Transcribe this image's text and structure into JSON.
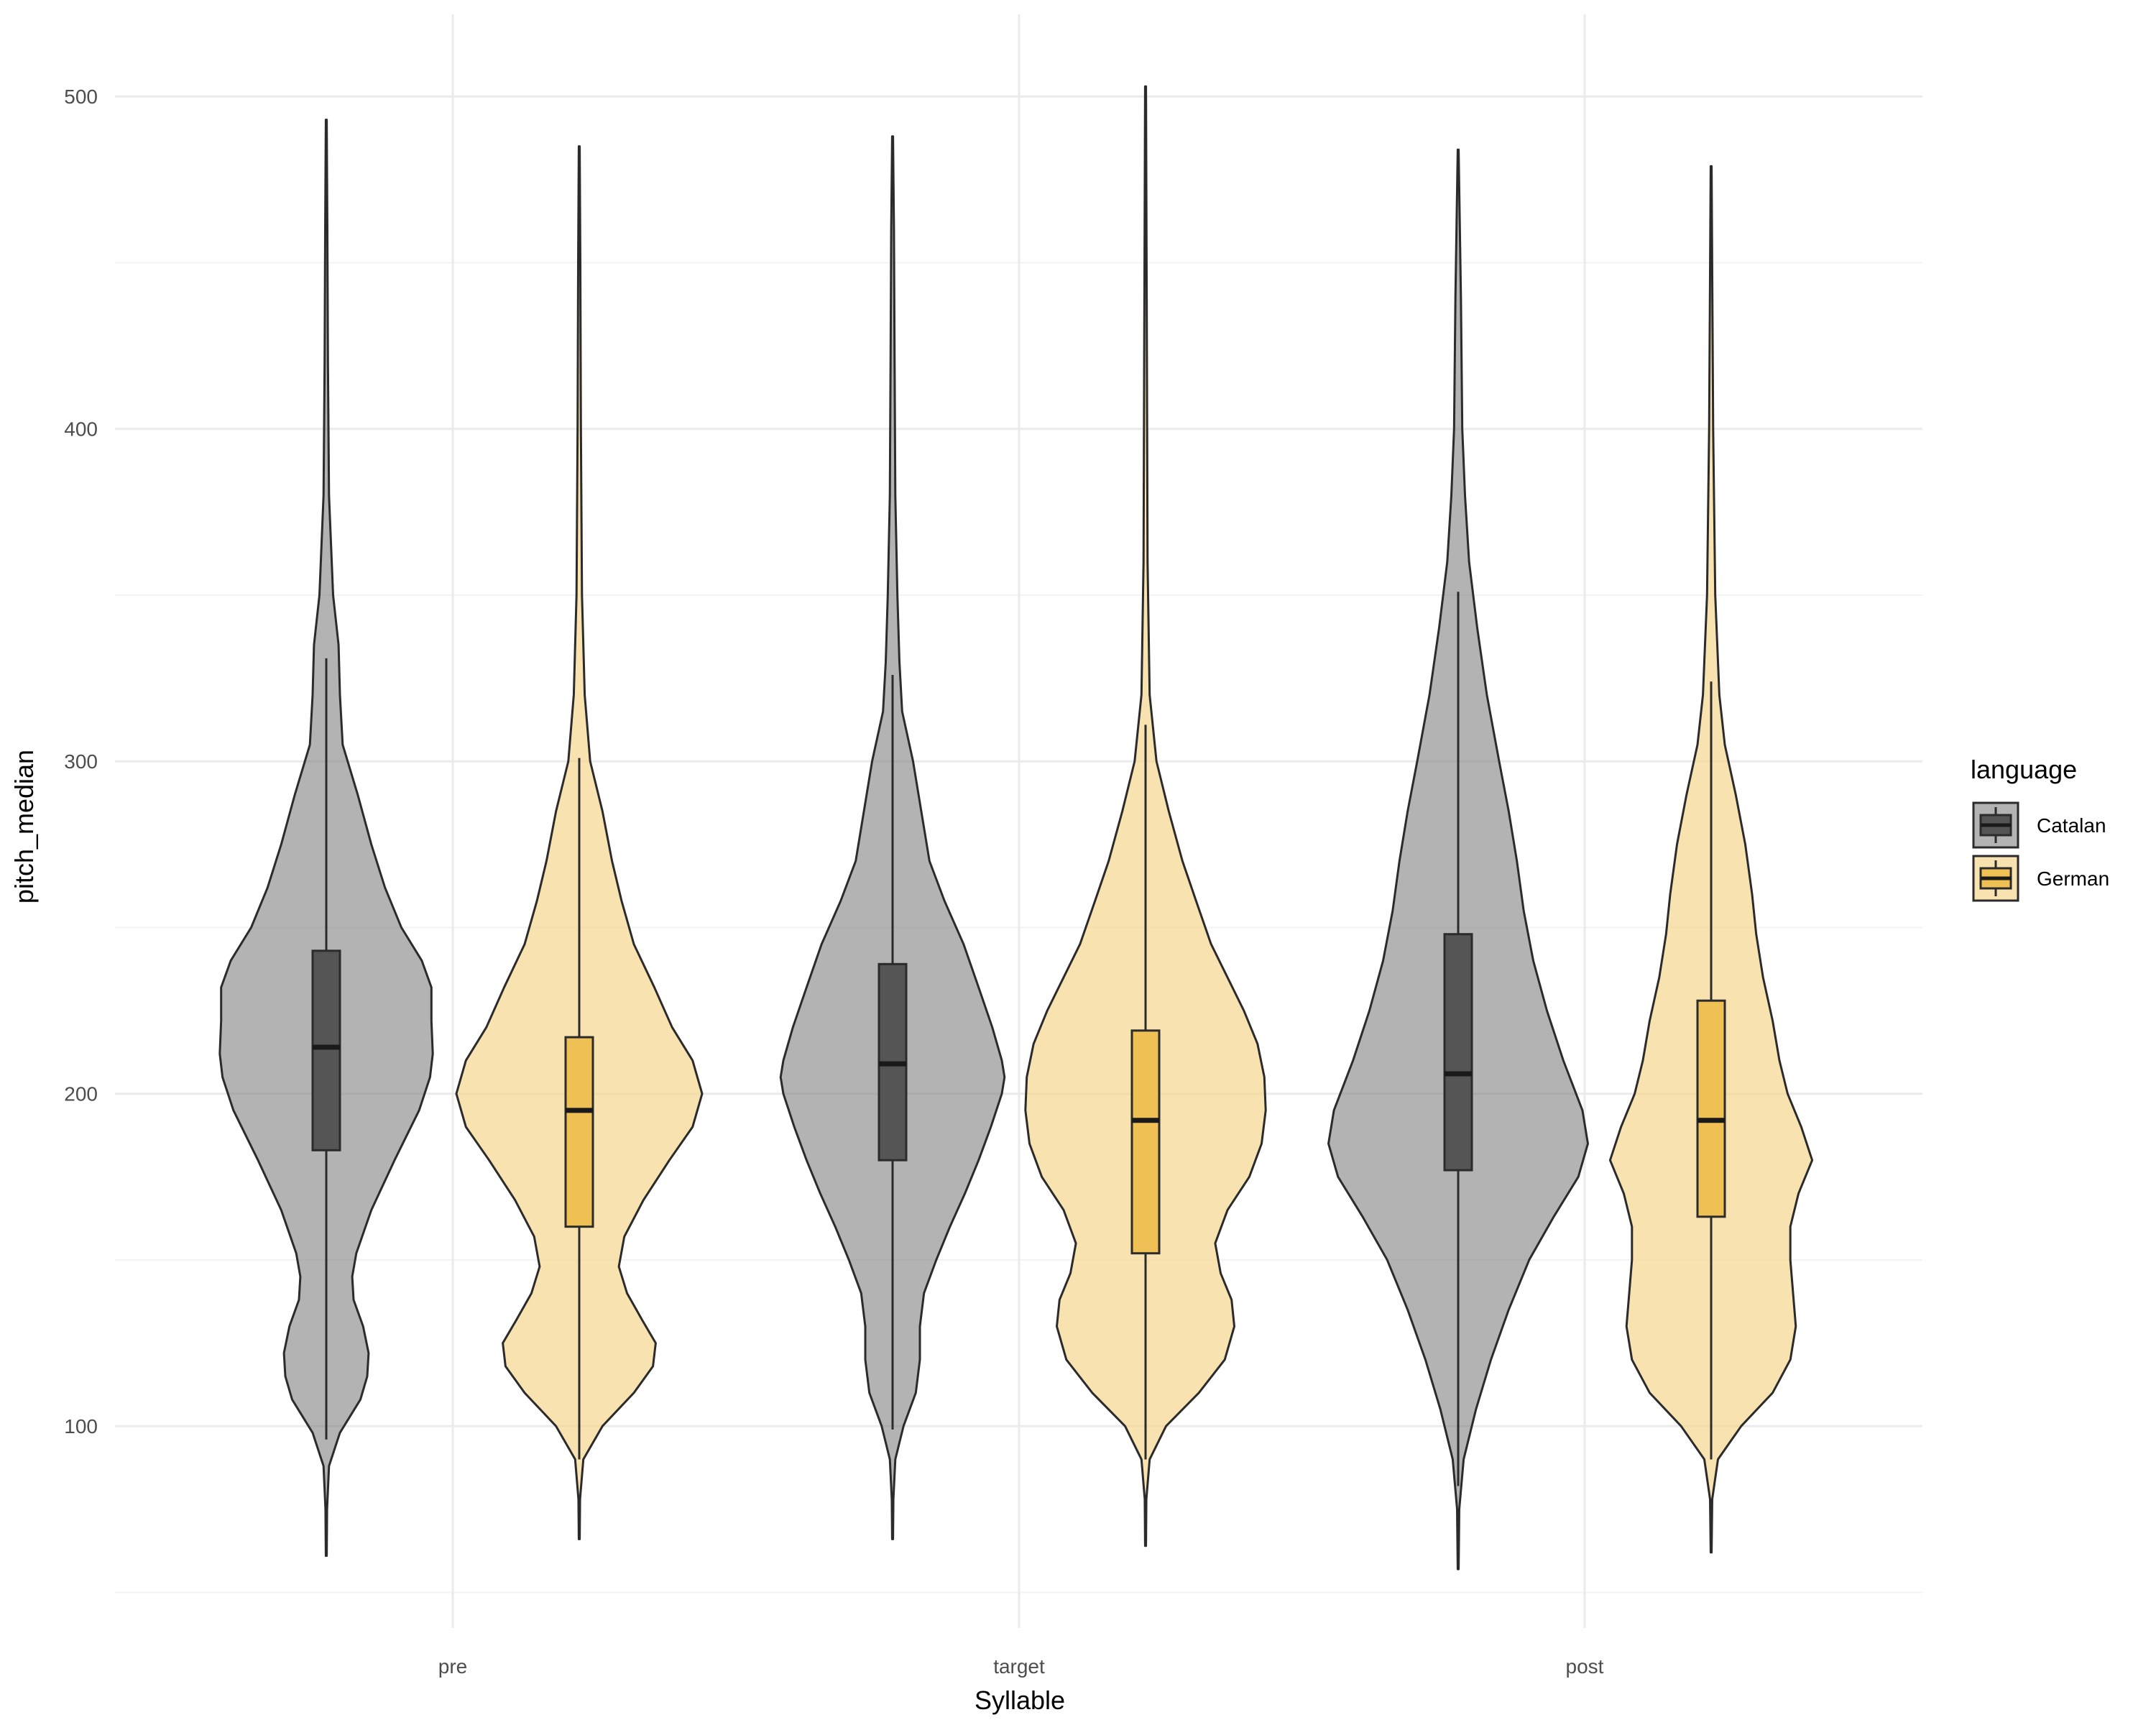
{
  "chart_data": {
    "type": "violin",
    "title": "",
    "xlabel": "Syllable",
    "ylabel": "pitch_median",
    "categories": [
      "pre",
      "target",
      "post"
    ],
    "ylim": [
      48,
      524
    ],
    "yticks": [
      100,
      200,
      300,
      400,
      500
    ],
    "grid": true,
    "legend": {
      "title": "language",
      "position": "right",
      "entries": [
        "Catalan",
        "German"
      ]
    },
    "colors": {
      "Catalan_fill": "#808080",
      "Catalan_box": "#555555",
      "German_fill": "#F5D58E",
      "German_box": "#EFC154",
      "outline": "#2b2b2b",
      "grid_major": "#ebebeb",
      "grid_minor": "#f3f3f3"
    },
    "series": [
      {
        "name": "Catalan",
        "groups": [
          {
            "category": "pre",
            "range": [
              61,
              493
            ],
            "box": {
              "whisker_low": 96,
              "q1": 183,
              "median": 214,
              "q3": 243,
              "whisker_high": 331
            },
            "density": [
              [
                61,
                0.003
              ],
              [
                75,
                0.006
              ],
              [
                88,
                0.02
              ],
              [
                98,
                0.1
              ],
              [
                108,
                0.25
              ],
              [
                115,
                0.3
              ],
              [
                122,
                0.31
              ],
              [
                130,
                0.27
              ],
              [
                138,
                0.2
              ],
              [
                145,
                0.19
              ],
              [
                152,
                0.22
              ],
              [
                165,
                0.33
              ],
              [
                180,
                0.5
              ],
              [
                195,
                0.68
              ],
              [
                205,
                0.76
              ],
              [
                212,
                0.78
              ],
              [
                222,
                0.77
              ],
              [
                232,
                0.77
              ],
              [
                240,
                0.7
              ],
              [
                250,
                0.55
              ],
              [
                262,
                0.43
              ],
              [
                275,
                0.33
              ],
              [
                290,
                0.23
              ],
              [
                305,
                0.12
              ],
              [
                320,
                0.1
              ],
              [
                335,
                0.09
              ],
              [
                350,
                0.05
              ],
              [
                380,
                0.02
              ],
              [
                420,
                0.012
              ],
              [
                460,
                0.008
              ],
              [
                493,
                0.003
              ]
            ]
          },
          {
            "category": "target",
            "range": [
              66,
              488
            ],
            "box": {
              "whisker_low": 99,
              "q1": 180,
              "median": 209,
              "q3": 239,
              "whisker_high": 326
            },
            "density": [
              [
                66,
                0.003
              ],
              [
                78,
                0.006
              ],
              [
                90,
                0.02
              ],
              [
                100,
                0.08
              ],
              [
                110,
                0.17
              ],
              [
                120,
                0.2
              ],
              [
                130,
                0.2
              ],
              [
                140,
                0.23
              ],
              [
                150,
                0.32
              ],
              [
                160,
                0.42
              ],
              [
                170,
                0.53
              ],
              [
                180,
                0.63
              ],
              [
                190,
                0.72
              ],
              [
                200,
                0.8
              ],
              [
                205,
                0.82
              ],
              [
                210,
                0.8
              ],
              [
                220,
                0.73
              ],
              [
                232,
                0.63
              ],
              [
                245,
                0.52
              ],
              [
                258,
                0.38
              ],
              [
                270,
                0.27
              ],
              [
                285,
                0.21
              ],
              [
                300,
                0.15
              ],
              [
                315,
                0.07
              ],
              [
                330,
                0.05
              ],
              [
                350,
                0.035
              ],
              [
                380,
                0.02
              ],
              [
                420,
                0.015
              ],
              [
                460,
                0.01
              ],
              [
                488,
                0.003
              ]
            ]
          },
          {
            "category": "post",
            "range": [
              57,
              484
            ],
            "box": {
              "whisker_low": 82,
              "q1": 177,
              "median": 206,
              "q3": 248,
              "whisker_high": 351
            },
            "density": [
              [
                57,
                0.003
              ],
              [
                75,
                0.008
              ],
              [
                90,
                0.04
              ],
              [
                105,
                0.13
              ],
              [
                120,
                0.24
              ],
              [
                135,
                0.37
              ],
              [
                150,
                0.52
              ],
              [
                163,
                0.7
              ],
              [
                175,
                0.88
              ],
              [
                185,
                0.95
              ],
              [
                195,
                0.91
              ],
              [
                210,
                0.77
              ],
              [
                225,
                0.65
              ],
              [
                240,
                0.55
              ],
              [
                255,
                0.48
              ],
              [
                270,
                0.43
              ],
              [
                285,
                0.37
              ],
              [
                300,
                0.3
              ],
              [
                320,
                0.21
              ],
              [
                340,
                0.14
              ],
              [
                360,
                0.08
              ],
              [
                380,
                0.05
              ],
              [
                400,
                0.03
              ],
              [
                440,
                0.02
              ],
              [
                484,
                0.003
              ]
            ]
          }
        ]
      },
      {
        "name": "German",
        "groups": [
          {
            "category": "pre",
            "range": [
              66,
              485
            ],
            "box": {
              "whisker_low": 90,
              "q1": 160,
              "median": 195,
              "q3": 217,
              "whisker_high": 301
            },
            "density": [
              [
                66,
                0.003
              ],
              [
                78,
                0.006
              ],
              [
                90,
                0.03
              ],
              [
                100,
                0.17
              ],
              [
                110,
                0.4
              ],
              [
                118,
                0.54
              ],
              [
                125,
                0.56
              ],
              [
                132,
                0.46
              ],
              [
                140,
                0.35
              ],
              [
                148,
                0.29
              ],
              [
                157,
                0.33
              ],
              [
                168,
                0.47
              ],
              [
                180,
                0.66
              ],
              [
                190,
                0.83
              ],
              [
                200,
                0.9
              ],
              [
                210,
                0.83
              ],
              [
                220,
                0.68
              ],
              [
                232,
                0.55
              ],
              [
                245,
                0.4
              ],
              [
                258,
                0.31
              ],
              [
                270,
                0.24
              ],
              [
                285,
                0.17
              ],
              [
                300,
                0.08
              ],
              [
                320,
                0.04
              ],
              [
                350,
                0.02
              ],
              [
                400,
                0.012
              ],
              [
                450,
                0.008
              ],
              [
                485,
                0.003
              ]
            ]
          },
          {
            "category": "target",
            "range": [
              64,
              503
            ],
            "box": {
              "whisker_low": 90,
              "q1": 152,
              "median": 192,
              "q3": 219,
              "whisker_high": 311
            },
            "density": [
              [
                64,
                0.003
              ],
              [
                78,
                0.006
              ],
              [
                90,
                0.03
              ],
              [
                100,
                0.15
              ],
              [
                110,
                0.39
              ],
              [
                120,
                0.58
              ],
              [
                130,
                0.65
              ],
              [
                138,
                0.63
              ],
              [
                146,
                0.55
              ],
              [
                155,
                0.51
              ],
              [
                165,
                0.6
              ],
              [
                175,
                0.76
              ],
              [
                185,
                0.85
              ],
              [
                195,
                0.88
              ],
              [
                205,
                0.87
              ],
              [
                215,
                0.82
              ],
              [
                225,
                0.72
              ],
              [
                235,
                0.6
              ],
              [
                245,
                0.48
              ],
              [
                258,
                0.37
              ],
              [
                270,
                0.27
              ],
              [
                285,
                0.17
              ],
              [
                300,
                0.08
              ],
              [
                320,
                0.03
              ],
              [
                360,
                0.015
              ],
              [
                420,
                0.01
              ],
              [
                503,
                0.003
              ]
            ]
          },
          {
            "category": "post",
            "range": [
              62,
              479
            ],
            "box": {
              "whisker_low": 90,
              "q1": 163,
              "median": 192,
              "q3": 228,
              "whisker_high": 324
            },
            "density": [
              [
                62,
                0.003
              ],
              [
                78,
                0.008
              ],
              [
                90,
                0.05
              ],
              [
                100,
                0.22
              ],
              [
                110,
                0.45
              ],
              [
                120,
                0.58
              ],
              [
                130,
                0.62
              ],
              [
                140,
                0.6
              ],
              [
                150,
                0.58
              ],
              [
                160,
                0.58
              ],
              [
                170,
                0.64
              ],
              [
                180,
                0.74
              ],
              [
                190,
                0.66
              ],
              [
                200,
                0.56
              ],
              [
                210,
                0.5
              ],
              [
                222,
                0.45
              ],
              [
                235,
                0.38
              ],
              [
                248,
                0.33
              ],
              [
                260,
                0.3
              ],
              [
                275,
                0.25
              ],
              [
                290,
                0.18
              ],
              [
                305,
                0.1
              ],
              [
                320,
                0.06
              ],
              [
                350,
                0.03
              ],
              [
                400,
                0.015
              ],
              [
                479,
                0.003
              ]
            ]
          }
        ]
      }
    ]
  }
}
